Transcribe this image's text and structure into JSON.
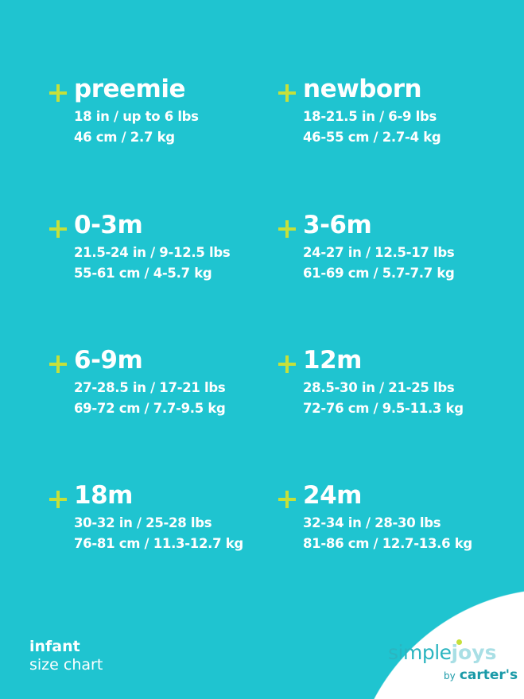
{
  "colors": {
    "background": "#1fc4d0",
    "plus": "#c6e03a",
    "text": "#ffffff"
  },
  "sizes": [
    {
      "title": "preemie",
      "imperial": "18 in / up to 6 lbs",
      "metric": "46 cm / 2.7 kg"
    },
    {
      "title": "newborn",
      "imperial": "18-21.5 in / 6-9 lbs",
      "metric": "46-55 cm / 2.7-4 kg"
    },
    {
      "title": "0-3m",
      "imperial": "21.5-24 in / 9-12.5 lbs",
      "metric": "55-61 cm / 4-5.7 kg"
    },
    {
      "title": "3-6m",
      "imperial": "24-27 in / 12.5-17 lbs",
      "metric": "61-69 cm / 5.7-7.7 kg"
    },
    {
      "title": "6-9m",
      "imperial": "27-28.5 in / 17-21 lbs",
      "metric": "69-72 cm / 7.7-9.5 kg"
    },
    {
      "title": "12m",
      "imperial": "28.5-30 in / 21-25 lbs",
      "metric": "72-76 cm / 9.5-11.3 kg"
    },
    {
      "title": "18m",
      "imperial": "30-32 in / 25-28 lbs",
      "metric": "76-81 cm / 11.3-12.7 kg"
    },
    {
      "title": "24m",
      "imperial": "32-34 in / 28-30 lbs",
      "metric": "81-86 cm / 12.7-13.6 kg"
    }
  ],
  "footer": {
    "line1": "infant",
    "line2": "size chart"
  },
  "logo": {
    "simple": "simple",
    "joys": "joys",
    "by": "by",
    "brand": "carter's"
  }
}
